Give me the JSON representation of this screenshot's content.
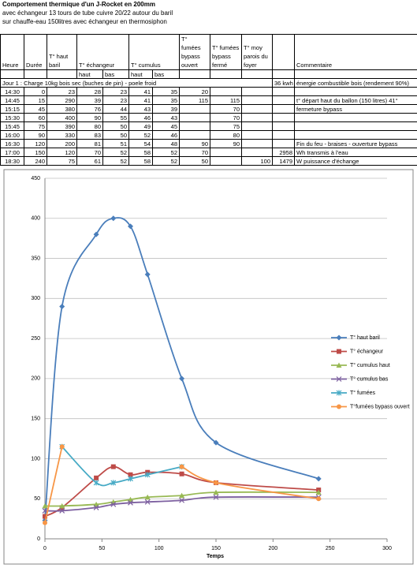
{
  "header": {
    "title": "Comportement thermique d'un J-Rocket en 200mm",
    "lines": [
      "avec échangeur 13 tours de tube cuivre 20/22 autour du baril",
      "sur chauffe-eau 150litres avec échangeur en thermosiphon"
    ]
  },
  "table": {
    "columns": [
      "Heure",
      "Durée",
      "T° haut baril",
      "T° échangeur",
      "T° cumulus",
      "T° fumées bypass ouvert",
      "T° fumées bypass fermé",
      "T° moy parois du foyer",
      "Commentaire"
    ],
    "subcolumns": [
      "haut",
      "bas",
      "haut",
      "bas"
    ],
    "day_row": [
      "Jour 1 : Charge 10kg bois sec (buches de pin) - poele froid",
      "36 kwh",
      "énergie combustible bois (rendement 90%)"
    ],
    "rows": [
      [
        "14:30",
        0,
        23,
        28,
        23,
        41,
        35,
        20,
        null,
        null,
        null,
        null
      ],
      [
        "14:45",
        15,
        290,
        39,
        23,
        41,
        35,
        115,
        115,
        null,
        null,
        "t° départ haut du ballon (150 litres) 41°"
      ],
      [
        "15:15",
        45,
        380,
        76,
        44,
        43,
        39,
        null,
        70,
        null,
        null,
        "fermeture bypass"
      ],
      [
        "15:30",
        60,
        400,
        90,
        55,
        46,
        43,
        null,
        70,
        null,
        null,
        null
      ],
      [
        "15:45",
        75,
        390,
        80,
        50,
        49,
        45,
        null,
        75,
        null,
        null,
        null
      ],
      [
        "16:00",
        90,
        330,
        83,
        50,
        52,
        46,
        null,
        80,
        null,
        null,
        null
      ],
      [
        "16:30",
        120,
        200,
        81,
        51,
        54,
        48,
        90,
        90,
        null,
        null,
        "Fin du feu - braises - ouverture bypass"
      ],
      [
        "17:00",
        150,
        120,
        70,
        52,
        58,
        52,
        70,
        null,
        null,
        2958,
        "Wh transmis à l'eau"
      ],
      [
        "18:30",
        240,
        75,
        61,
        52,
        58,
        52,
        50,
        null,
        100,
        1479,
        "W puissance d'échange"
      ]
    ]
  },
  "chart_data": {
    "type": "line",
    "x_label": "Temps",
    "x": [
      0,
      15,
      45,
      60,
      75,
      90,
      120,
      150,
      240
    ],
    "xlim": [
      0,
      300
    ],
    "xticks": [
      0,
      50,
      100,
      150,
      200,
      250,
      300
    ],
    "ylim": [
      0,
      450
    ],
    "yticks": [
      0,
      50,
      100,
      150,
      200,
      250,
      300,
      350,
      400,
      450
    ],
    "grid": true,
    "legend": "right",
    "series": [
      {
        "name": "T° haut baril",
        "color": "#4a7ebb",
        "marker": "diamond",
        "values": [
          23,
          290,
          380,
          400,
          390,
          330,
          200,
          120,
          75
        ]
      },
      {
        "name": "T° échangeur",
        "color": "#be4b48",
        "marker": "square",
        "values": [
          28,
          39,
          76,
          90,
          80,
          83,
          81,
          70,
          61
        ]
      },
      {
        "name": "T° cumulus haut",
        "color": "#98b954",
        "marker": "triangle",
        "values": [
          41,
          41,
          43,
          46,
          49,
          52,
          54,
          58,
          58
        ]
      },
      {
        "name": "T° cumulus bas",
        "color": "#7d60a0",
        "marker": "cross",
        "values": [
          35,
          35,
          39,
          43,
          45,
          46,
          48,
          52,
          52
        ]
      },
      {
        "name": "T° fumées",
        "color": "#46aac5",
        "marker": "star",
        "values": [
          null,
          115,
          70,
          70,
          75,
          80,
          90,
          null,
          null
        ]
      },
      {
        "name": "T°fumées bypass ouvert",
        "color": "#f79646",
        "marker": "circle",
        "values": [
          20,
          115,
          null,
          null,
          null,
          null,
          90,
          70,
          50
        ]
      }
    ]
  }
}
